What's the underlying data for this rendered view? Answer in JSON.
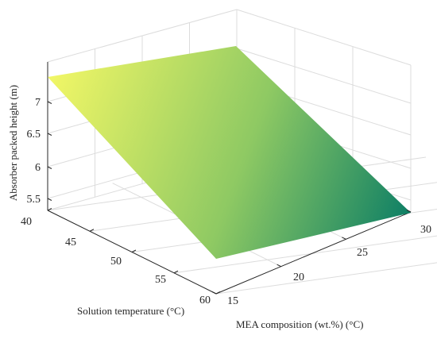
{
  "chart_data": {
    "type": "surface",
    "title": "",
    "xlabel": "Solution temperature (°C)",
    "ylabel": "MEA composition (wt.%) (°C)",
    "zlabel": "Absorber packed height (m)",
    "x_ticks": [
      "40",
      "45",
      "50",
      "55",
      "60"
    ],
    "y_ticks": [
      "15",
      "20",
      "25",
      "30"
    ],
    "z_ticks": [
      "5.5",
      "6",
      "6.5",
      "7"
    ],
    "xlim": [
      40,
      60
    ],
    "ylim": [
      15,
      30
    ],
    "zlim": [
      5.3,
      7.3
    ],
    "grid": true,
    "colormap": "summer",
    "surface_corners": [
      {
        "x": 40,
        "y": 15,
        "z": 7.35
      },
      {
        "x": 40,
        "y": 30,
        "z": 7.1
      },
      {
        "x": 60,
        "y": 15,
        "z": 5.55
      },
      {
        "x": 60,
        "y": 30,
        "z": 5.3
      }
    ],
    "colors": {
      "low": "#0e7f65",
      "high": "#f2f766",
      "grid": "#dcdcdc",
      "axis": "#262626"
    }
  }
}
